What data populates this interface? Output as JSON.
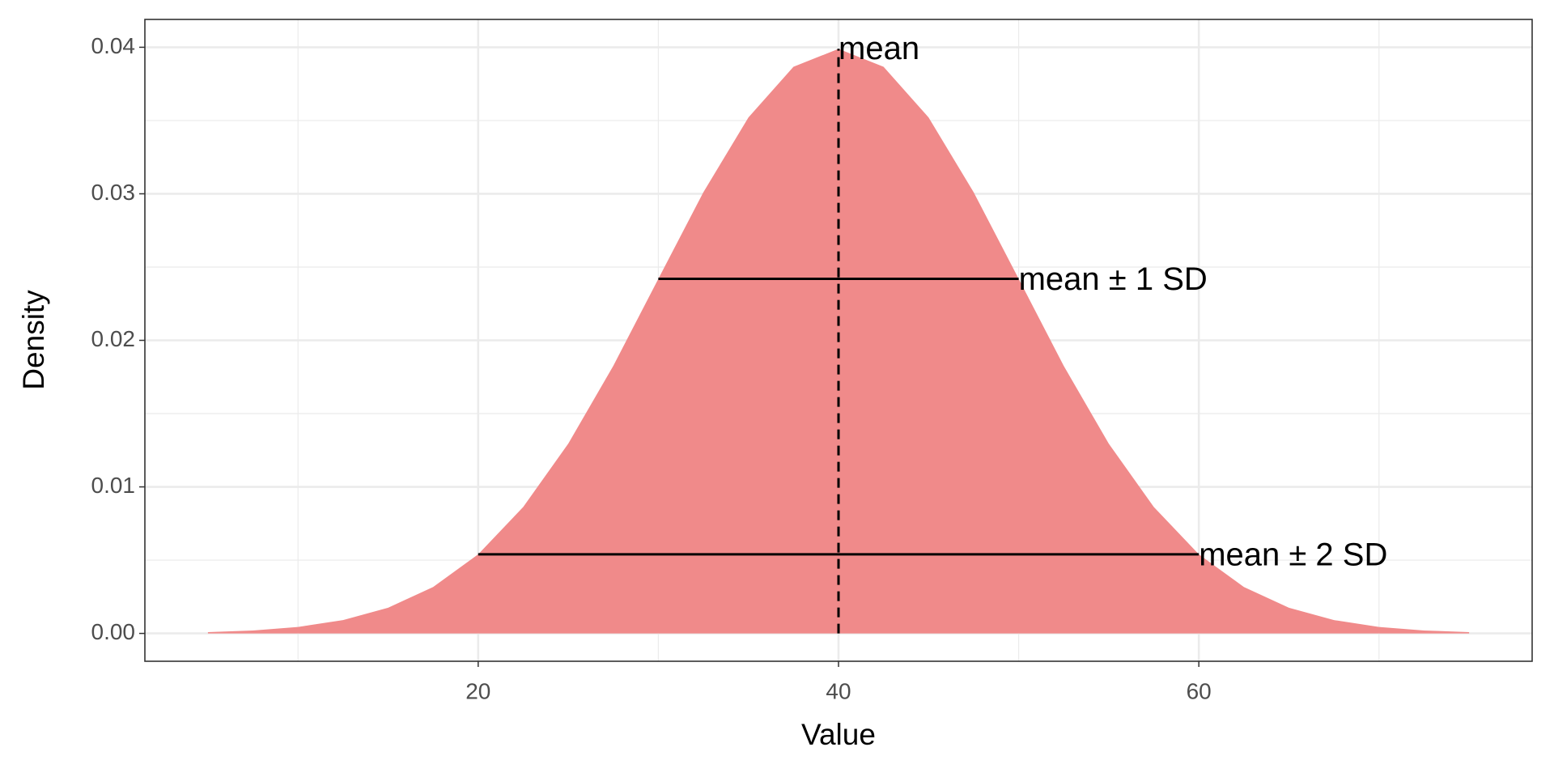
{
  "chart_data": {
    "type": "area",
    "x_label": "Value",
    "y_label": "Density",
    "x": [
      5,
      7.5,
      10,
      12.5,
      15,
      17.5,
      20,
      22.5,
      25,
      27.5,
      30,
      32.5,
      35,
      37.5,
      40,
      42.5,
      45,
      47.5,
      50,
      52.5,
      55,
      57.5,
      60,
      62.5,
      65,
      67.5,
      70,
      72.5,
      75
    ],
    "values": [
      9e-05,
      0.0002,
      0.00044,
      0.00091,
      0.00175,
      0.00317,
      0.0054,
      0.00863,
      0.01295,
      0.01826,
      0.0242,
      0.03011,
      0.03521,
      0.03867,
      0.03989,
      0.03867,
      0.03521,
      0.03011,
      0.0242,
      0.01826,
      0.01295,
      0.00863,
      0.0054,
      0.00317,
      0.00175,
      0.00091,
      0.00044,
      0.0002,
      9e-05
    ],
    "color": "#f08a8a",
    "xlim": [
      1.5,
      78.5
    ],
    "ylim": [
      -0.0019,
      0.0419
    ],
    "xticks": [
      20,
      40,
      60
    ],
    "yticks": [
      {
        "value": 0,
        "label": "0.00"
      },
      {
        "value": 0.01,
        "label": "0.01"
      },
      {
        "value": 0.02,
        "label": "0.02"
      },
      {
        "value": 0.03,
        "label": "0.03"
      },
      {
        "value": 0.04,
        "label": "0.04"
      }
    ],
    "x_minor_grid": [
      10,
      30,
      50,
      70
    ],
    "y_minor_grid": [
      0.005,
      0.015,
      0.025,
      0.035
    ],
    "grid": true,
    "mean_line": {
      "x": 40,
      "y": [
        0,
        0.0399
      ],
      "label": "mean"
    },
    "sd_segments": [
      {
        "x": [
          30,
          50
        ],
        "y": 0.0242,
        "label": "mean ± 1 SD"
      },
      {
        "x": [
          20,
          60
        ],
        "y": 0.0054,
        "label": "mean ± 2 SD"
      }
    ]
  }
}
